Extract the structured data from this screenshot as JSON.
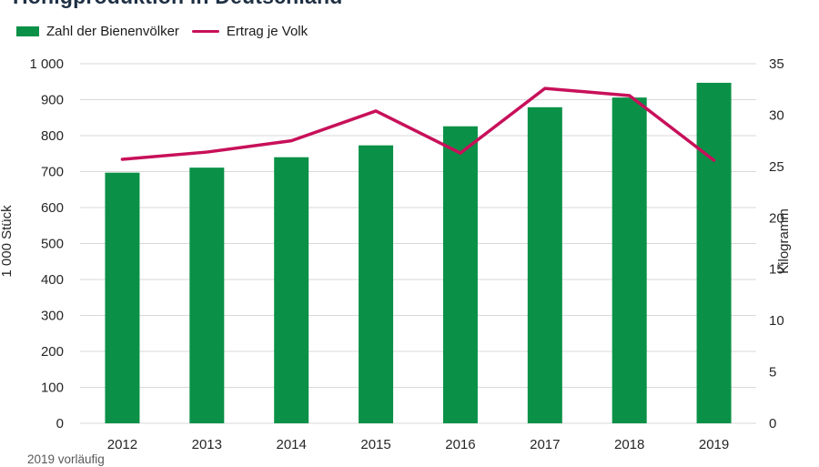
{
  "footnote": "2019 vorläufig",
  "colors": {
    "title": "#1f3044",
    "text": "#262626",
    "gridline": "#d9d9d9",
    "bar_green": "#0a9147",
    "line_crimson": "#c8105a"
  },
  "chart_data": {
    "type": "bar",
    "subtype": "bar-line-combo",
    "title": "Honigproduktion in Deutschland",
    "categories": [
      "2012",
      "2013",
      "2014",
      "2015",
      "2016",
      "2017",
      "2018",
      "2019"
    ],
    "series": [
      {
        "name": "Zahl der Bienenvölker",
        "type": "bar",
        "axis": "left",
        "color": "#0a9147",
        "values": [
          697,
          711,
          740,
          773,
          826,
          879,
          906,
          947
        ]
      },
      {
        "name": "Ertrag je Volk",
        "type": "line",
        "axis": "right",
        "color": "#c8105a",
        "values": [
          25.7,
          26.4,
          27.5,
          30.4,
          26.3,
          32.6,
          31.9,
          25.6
        ]
      }
    ],
    "left_axis": {
      "label": "1 000 Stück",
      "min": 0,
      "max": 1000,
      "step": 100,
      "tick_labels": [
        "0",
        "100",
        "200",
        "300",
        "400",
        "500",
        "600",
        "700",
        "800",
        "900",
        "1 000"
      ]
    },
    "right_axis": {
      "label": "Kilogramm",
      "min": 0,
      "max": 35,
      "step": 5,
      "tick_labels": [
        "0",
        "5",
        "10",
        "15",
        "20",
        "25",
        "30",
        "35"
      ]
    },
    "grid": true,
    "legend_position": "top-left"
  }
}
